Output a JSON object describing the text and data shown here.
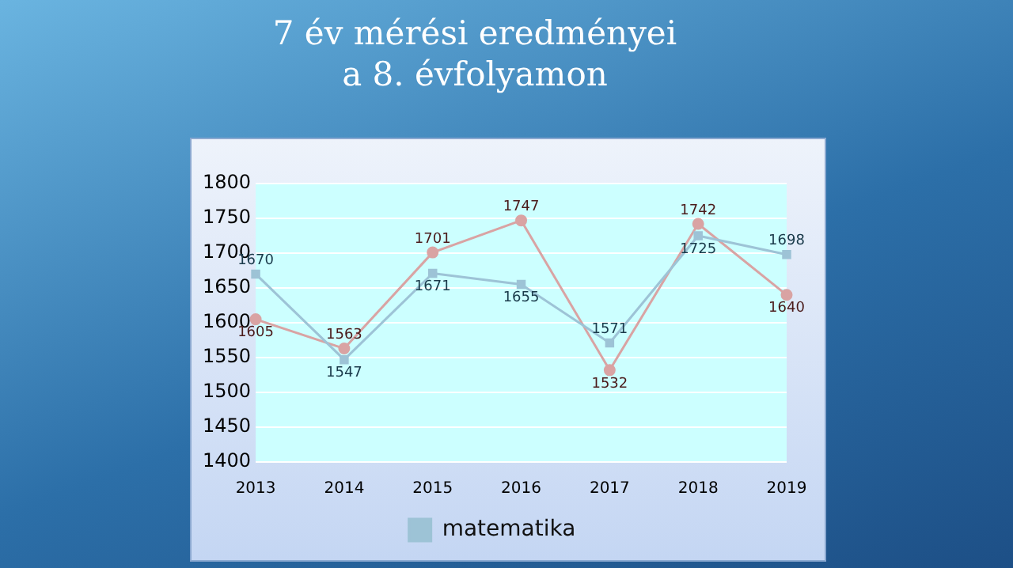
{
  "chart_data": {
    "type": "line",
    "title": "7 év mérési eredményei\na 8. évfolyamon",
    "categories": [
      "2013",
      "2014",
      "2015",
      "2016",
      "2017",
      "2018",
      "2019"
    ],
    "series": [
      {
        "name": "matematika",
        "color": "#9dc3d6",
        "marker": "square",
        "values": [
          1670,
          1547,
          1671,
          1655,
          1571,
          1725,
          1698
        ]
      },
      {
        "color": "#d9a3a3",
        "marker": "circle",
        "values": [
          1605,
          1563,
          1701,
          1747,
          1532,
          1742,
          1640
        ]
      }
    ],
    "ylim": [
      1400,
      1800
    ],
    "yticks": [
      1400,
      1450,
      1500,
      1550,
      1600,
      1650,
      1700,
      1750,
      1800
    ],
    "grid": "y",
    "legend": "bottom",
    "data_labels": true
  }
}
